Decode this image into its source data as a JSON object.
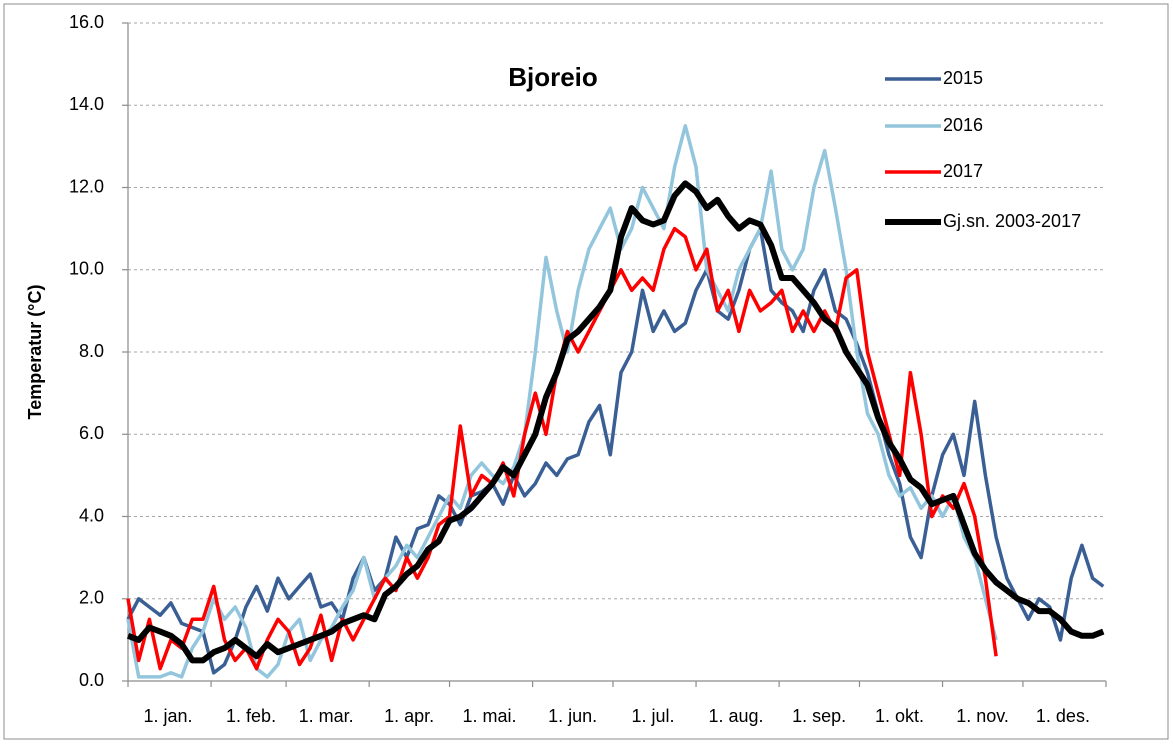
{
  "chart_data": {
    "type": "line",
    "title": "Bjoreio",
    "y_label": "Temperatur (°C)",
    "x": [
      1,
      5,
      9,
      13,
      17,
      21,
      25,
      29,
      33,
      37,
      41,
      45,
      49,
      53,
      57,
      61,
      65,
      69,
      73,
      77,
      81,
      85,
      89,
      93,
      97,
      101,
      105,
      109,
      113,
      117,
      121,
      125,
      129,
      133,
      137,
      141,
      145,
      149,
      153,
      157,
      161,
      165,
      169,
      173,
      177,
      181,
      185,
      189,
      193,
      197,
      201,
      205,
      209,
      213,
      217,
      221,
      225,
      229,
      233,
      237,
      241,
      245,
      249,
      253,
      257,
      261,
      265,
      269,
      273,
      277,
      281,
      285,
      289,
      293,
      297,
      301,
      305,
      309,
      313,
      317,
      321,
      325,
      329,
      333,
      337,
      341,
      345,
      349,
      353,
      357,
      361,
      365
    ],
    "xlim": [
      1,
      366
    ],
    "xticks": [
      {
        "value": 1,
        "label": "1. jan."
      },
      {
        "value": 32,
        "label": "1. feb."
      },
      {
        "value": 60,
        "label": "1. mar."
      },
      {
        "value": 91,
        "label": "1. apr."
      },
      {
        "value": 121,
        "label": "1. mai."
      },
      {
        "value": 152,
        "label": "1. jun."
      },
      {
        "value": 182,
        "label": "1. jul."
      },
      {
        "value": 213,
        "label": "1. aug."
      },
      {
        "value": 244,
        "label": "1. sep."
      },
      {
        "value": 274,
        "label": "1. okt."
      },
      {
        "value": 305,
        "label": "1. nov."
      },
      {
        "value": 335,
        "label": "1. des."
      }
    ],
    "ylim": [
      0,
      16
    ],
    "yticks": [
      {
        "value": 0,
        "label": "0.0"
      },
      {
        "value": 2,
        "label": "2.0"
      },
      {
        "value": 4,
        "label": "4.0"
      },
      {
        "value": 6,
        "label": "6.0"
      },
      {
        "value": 8,
        "label": "8.0"
      },
      {
        "value": 10,
        "label": "10.0"
      },
      {
        "value": 12,
        "label": "12.0"
      },
      {
        "value": 14,
        "label": "14.0"
      },
      {
        "value": 16,
        "label": "16.0"
      }
    ],
    "grid": true,
    "legend": "upper right",
    "series": [
      {
        "name": "2015",
        "color": "#3a5f94",
        "width": 3.5,
        "values": [
          1.5,
          2.0,
          1.8,
          1.6,
          1.9,
          1.4,
          1.3,
          1.2,
          0.2,
          0.4,
          1.0,
          1.8,
          2.3,
          1.7,
          2.5,
          2.0,
          2.3,
          2.6,
          1.8,
          1.9,
          1.5,
          2.5,
          3.0,
          2.2,
          2.5,
          3.5,
          3.0,
          3.7,
          3.8,
          4.5,
          4.3,
          3.8,
          4.5,
          4.6,
          4.8,
          4.3,
          5.0,
          4.5,
          4.8,
          5.3,
          5.0,
          5.4,
          5.5,
          6.3,
          6.7,
          5.5,
          7.5,
          8.0,
          9.5,
          8.5,
          9.0,
          8.5,
          8.7,
          9.5,
          10.0,
          9.0,
          8.8,
          9.5,
          10.5,
          11.0,
          9.5,
          9.2,
          9.0,
          8.5,
          9.5,
          10.0,
          9.0,
          8.8,
          8.2,
          7.5,
          6.5,
          5.5,
          4.8,
          3.5,
          3.0,
          4.5,
          5.5,
          6.0,
          5.0,
          6.8,
          5.0,
          3.5,
          2.5,
          2.0,
          1.5,
          2.0,
          1.8,
          1.0,
          2.5,
          3.3,
          2.5,
          2.3
        ]
      },
      {
        "name": "2016",
        "color": "#93c6dc",
        "width": 3.5,
        "values": [
          1.5,
          0.1,
          0.1,
          0.1,
          0.2,
          0.1,
          0.8,
          1.2,
          2.0,
          1.5,
          1.8,
          1.3,
          0.3,
          0.1,
          0.4,
          1.2,
          1.5,
          0.5,
          1.0,
          1.3,
          1.8,
          2.2,
          3.0,
          2.0,
          2.5,
          2.8,
          3.3,
          3.0,
          3.5,
          4.0,
          4.5,
          4.2,
          5.0,
          5.3,
          5.0,
          4.8,
          5.2,
          6.0,
          8.0,
          10.3,
          9.0,
          8.0,
          9.5,
          10.5,
          11.0,
          11.5,
          10.5,
          11.0,
          12.0,
          11.5,
          11.0,
          12.5,
          13.5,
          12.5,
          10.0,
          9.5,
          9.0,
          10.0,
          10.5,
          11.0,
          12.4,
          10.5,
          10.0,
          10.5,
          12.0,
          12.9,
          11.5,
          10.0,
          8.0,
          6.5,
          6.0,
          5.0,
          4.5,
          4.7,
          4.2,
          4.5,
          4.0,
          4.5,
          3.5,
          3.0,
          2.0,
          1.0,
          null,
          null,
          null,
          null,
          null,
          null,
          null,
          null,
          null,
          null
        ]
      },
      {
        "name": "2017",
        "color": "#ff0000",
        "width": 3.5,
        "values": [
          2.0,
          0.5,
          1.5,
          0.3,
          1.0,
          0.8,
          1.5,
          1.5,
          2.3,
          1.0,
          0.5,
          0.8,
          0.3,
          1.0,
          1.5,
          1.2,
          0.4,
          0.8,
          1.6,
          0.5,
          1.5,
          1.0,
          1.5,
          2.0,
          2.5,
          2.2,
          3.0,
          2.5,
          3.0,
          3.8,
          4.0,
          6.2,
          4.5,
          5.0,
          4.8,
          5.3,
          4.5,
          6.0,
          7.0,
          6.0,
          7.5,
          8.5,
          8.0,
          8.5,
          9.0,
          9.5,
          10.0,
          9.5,
          9.8,
          9.5,
          10.5,
          11.0,
          10.8,
          10.0,
          10.5,
          9.0,
          9.5,
          8.5,
          9.5,
          9.0,
          9.2,
          9.5,
          8.5,
          9.0,
          8.5,
          9.0,
          8.5,
          9.8,
          10.0,
          8.0,
          7.0,
          6.0,
          5.0,
          7.5,
          6.0,
          4.0,
          4.5,
          4.2,
          4.8,
          4.0,
          2.5,
          0.6,
          null,
          null,
          null,
          null,
          null,
          null,
          null,
          null,
          null,
          null
        ]
      },
      {
        "name": "Gj.sn. 2003-2017",
        "color": "#000000",
        "width": 6,
        "values": [
          1.1,
          1.0,
          1.3,
          1.2,
          1.1,
          0.9,
          0.5,
          0.5,
          0.7,
          0.8,
          1.0,
          0.8,
          0.6,
          0.9,
          0.7,
          0.8,
          0.9,
          1.0,
          1.1,
          1.2,
          1.4,
          1.5,
          1.6,
          1.5,
          2.1,
          2.3,
          2.6,
          2.8,
          3.2,
          3.4,
          3.9,
          4.0,
          4.2,
          4.5,
          4.8,
          5.2,
          5.0,
          5.5,
          6.0,
          6.9,
          7.5,
          8.3,
          8.5,
          8.8,
          9.1,
          9.5,
          10.8,
          11.5,
          11.2,
          11.1,
          11.2,
          11.8,
          12.1,
          11.9,
          11.5,
          11.7,
          11.3,
          11.0,
          11.2,
          11.1,
          10.6,
          9.8,
          9.8,
          9.5,
          9.2,
          8.8,
          8.6,
          8.0,
          7.6,
          7.2,
          6.4,
          5.8,
          5.4,
          4.9,
          4.7,
          4.3,
          4.4,
          4.5,
          3.8,
          3.1,
          2.7,
          2.4,
          2.2,
          2.0,
          1.9,
          1.7,
          1.7,
          1.5,
          1.2,
          1.1,
          1.1,
          1.2
        ]
      }
    ]
  }
}
